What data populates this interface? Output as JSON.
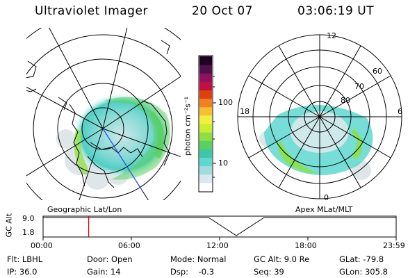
{
  "header": {
    "instrument": "Ultraviolet Imager",
    "date": "20 Oct 07",
    "time": "03:06:19 UT"
  },
  "left_panel": {
    "caption": "Geographic Lat/Lon"
  },
  "right_panel": {
    "caption": "Apex MLat/MLT",
    "lat_labels": [
      "80",
      "70",
      "60"
    ],
    "mlt_labels": {
      "top": "12",
      "bottom": "0",
      "left": "18",
      "right": "6"
    }
  },
  "colorbar": {
    "unit_label": "photon cm⁻²s⁻¹",
    "tick_labels": [
      "100",
      "10"
    ],
    "colors": [
      "#ffffff",
      "#d8e8ee",
      "#9fdcdc",
      "#5ed7d0",
      "#3cc8a8",
      "#5ad060",
      "#8ee040",
      "#c8ee30",
      "#f0f040",
      "#f8c030",
      "#f08020",
      "#e04010",
      "#c01040",
      "#901060",
      "#501050",
      "#200020"
    ]
  },
  "altitude_plot": {
    "axis_label": "GC Alt",
    "y_ticks": [
      "9.0",
      "1.8"
    ],
    "x_ticks": [
      "00:00",
      "06:00",
      "12:00",
      "18:00",
      "23:59"
    ],
    "current_time_marker_hours": 3.1
  },
  "status": {
    "filter": "Flt: LBHL",
    "ip": "IP: 36.0",
    "door": "Door: Open",
    "gain": "Gain: 14",
    "mode": "Mode: Normal",
    "dsp": "Dsp:    -0.3",
    "gc_alt": "GC Alt: 9.0 Re",
    "seq": "Seq: 39",
    "glat": "GLat: -79.8",
    "glon": "GLon: 305.8"
  },
  "colors": {
    "marker": "#e00000",
    "aurora_low": "#5ed7d0",
    "aurora_high": "#8ee040"
  }
}
